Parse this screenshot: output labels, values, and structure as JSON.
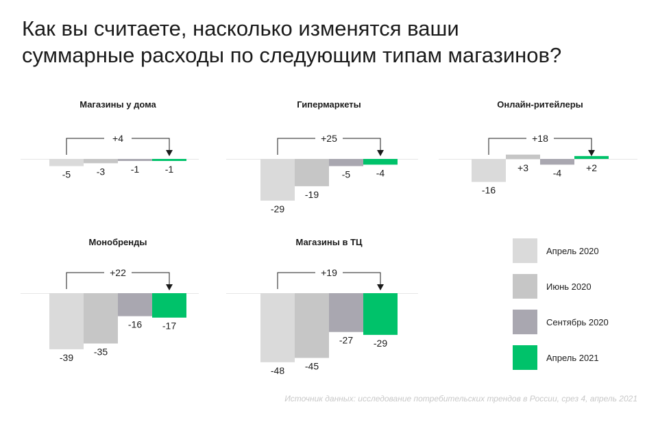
{
  "title_line1": "Как вы считаете, насколько изменятся ваши",
  "title_line2": "суммарные расходы по следующим типам магазинов?",
  "colors": [
    "#dadada",
    "#c6c6c6",
    "#a9a7b0",
    "#00c26a"
  ],
  "chart_data": [
    {
      "type": "bar",
      "title": "Магазины у дома",
      "categories": [
        "Апрель 2020",
        "Июнь 2020",
        "Сентябрь 2020",
        "Апрель 2021"
      ],
      "values": [
        -5,
        -3,
        -1,
        -1
      ],
      "labels": [
        "-5",
        "-3",
        "-1",
        "-1"
      ],
      "change": "+4"
    },
    {
      "type": "bar",
      "title": "Гипермаркеты",
      "categories": [
        "Апрель 2020",
        "Июнь 2020",
        "Сентябрь 2020",
        "Апрель 2021"
      ],
      "values": [
        -29,
        -19,
        -5,
        -4
      ],
      "labels": [
        "-29",
        "-19",
        "-5",
        "-4"
      ],
      "change": "+25"
    },
    {
      "type": "bar",
      "title": "Онлайн-ритейлеры",
      "categories": [
        "Апрель 2020",
        "Июнь 2020",
        "Сентябрь 2020",
        "Апрель 2021"
      ],
      "values": [
        -16,
        3,
        -4,
        2
      ],
      "labels": [
        "-16",
        "+3",
        "-4",
        "+2"
      ],
      "change": "+18"
    },
    {
      "type": "bar",
      "title": "Монобренды",
      "categories": [
        "Апрель 2020",
        "Июнь 2020",
        "Сентябрь 2020",
        "Апрель 2021"
      ],
      "values": [
        -39,
        -35,
        -16,
        -17
      ],
      "labels": [
        "-39",
        "-35",
        "-16",
        "-17"
      ],
      "change": "+22"
    },
    {
      "type": "bar",
      "title": "Магазины в ТЦ",
      "categories": [
        "Апрель 2020",
        "Июнь 2020",
        "Сентябрь 2020",
        "Апрель 2021"
      ],
      "values": [
        -48,
        -45,
        -27,
        -29
      ],
      "labels": [
        "-48",
        "-45",
        "-27",
        "-29"
      ],
      "change": "+19"
    }
  ],
  "legend": [
    "Апрель 2020",
    "Июнь 2020",
    "Сентябрь 2020",
    "Апрель 2021"
  ],
  "source": "Источник данных: исследование потребительских трендов в России, срез 4, апрель 2021"
}
